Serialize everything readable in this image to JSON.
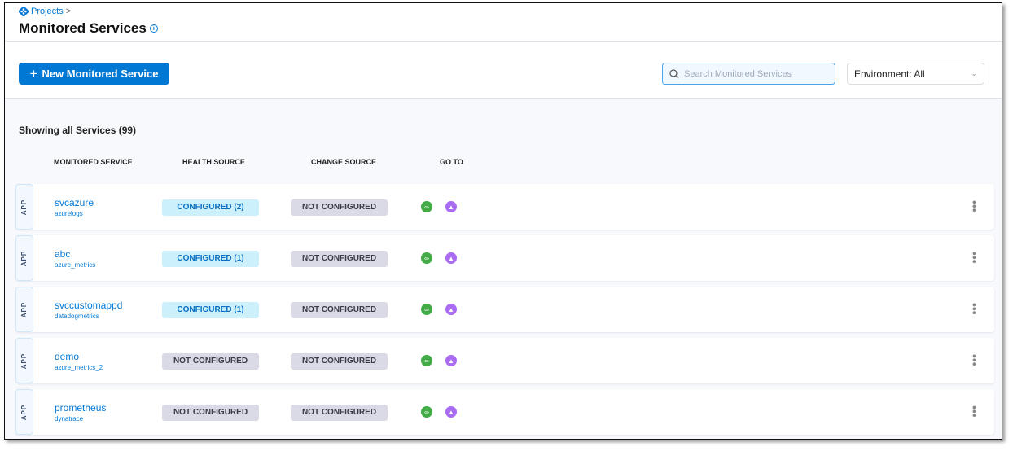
{
  "breadcrumb": {
    "label": "Projects",
    "sep": ">"
  },
  "page": {
    "title": "Monitored Services"
  },
  "toolbar": {
    "new_label": "New Monitored Service",
    "search_placeholder": "Search Monitored Services",
    "env_label": "Environment: All"
  },
  "summary": "Showing all Services (99)",
  "columns": [
    "MONITORED SERVICE",
    "HEALTH SOURCE",
    "CHANGE SOURCE",
    "GO TO"
  ],
  "tag_label": "APP",
  "rows": [
    {
      "name": "svcazure",
      "sub": "azurelogs",
      "health": "CONFIGURED (2)",
      "health_cfg": true,
      "change": "NOT CONFIGURED"
    },
    {
      "name": "abc",
      "sub": "azure_metrics",
      "health": "CONFIGURED (1)",
      "health_cfg": true,
      "change": "NOT CONFIGURED"
    },
    {
      "name": "svccustomappd",
      "sub": "datadogmetrics",
      "health": "CONFIGURED (1)",
      "health_cfg": true,
      "change": "NOT CONFIGURED"
    },
    {
      "name": "demo",
      "sub": "azure_metrics_2",
      "health": "NOT CONFIGURED",
      "health_cfg": false,
      "change": "NOT CONFIGURED"
    },
    {
      "name": "prometheus",
      "sub": "dynatrace",
      "health": "NOT CONFIGURED",
      "health_cfg": false,
      "change": "NOT CONFIGURED"
    }
  ],
  "colors": {
    "accent": "#0278d5",
    "configured_bg": "#cdf1fc",
    "not_configured_bg": "#d9dae5"
  }
}
